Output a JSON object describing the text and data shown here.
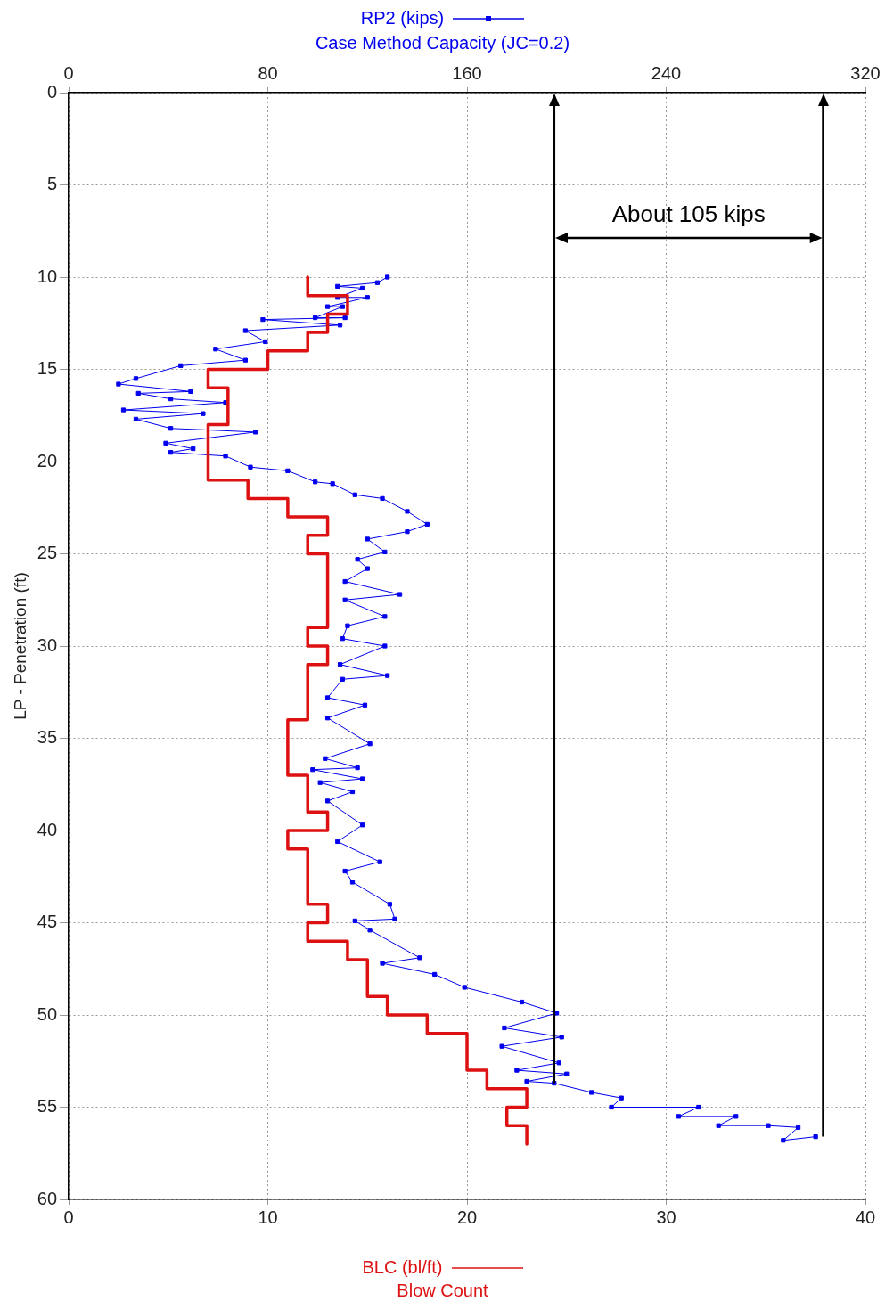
{
  "chart_data": {
    "type": "line",
    "xlabel": "Blow Count",
    "x2label": "Case Method Capacity (JC=0.2)",
    "ylabel": "LP - Penetration (ft)",
    "xlim": [
      0,
      40
    ],
    "xticks": [
      0,
      10,
      20,
      30,
      40
    ],
    "x2lim": [
      0,
      320
    ],
    "x2ticks": [
      0,
      80,
      160,
      240,
      320
    ],
    "ylim": [
      60,
      0
    ],
    "yticks": [
      0,
      5,
      10,
      15,
      20,
      25,
      30,
      35,
      40,
      45,
      50,
      55,
      60
    ],
    "grid": true,
    "legend": "top",
    "series": [
      {
        "name": "RP2 (kips)",
        "type": "line",
        "axis": "x2",
        "color": "#0000ee",
        "marker": "square",
        "x": [
          128,
          124,
          108,
          118,
          108,
          120,
          104,
          110,
          99,
          111,
          78,
          109,
          71,
          79,
          59,
          71,
          45,
          27,
          20,
          49,
          28,
          41,
          63,
          22,
          54,
          27,
          41,
          75,
          39,
          50,
          41,
          63,
          73,
          88,
          99,
          106,
          115,
          126,
          136,
          144,
          136,
          120,
          127,
          116,
          120,
          111,
          133,
          111,
          127,
          112,
          110,
          127,
          109,
          128,
          110,
          104,
          119,
          104,
          121,
          103,
          116,
          98,
          118,
          101,
          114,
          104,
          118,
          108,
          125,
          111,
          114,
          129,
          131,
          115,
          121,
          141,
          126,
          147,
          159,
          182,
          196,
          175,
          198,
          174,
          197,
          180,
          200,
          184,
          195,
          210,
          222,
          218,
          253,
          245,
          268,
          261,
          281,
          293,
          287,
          300
        ],
        "values": [
          10,
          10.3,
          10.5,
          10.6,
          11.1,
          11.1,
          11.6,
          11.6,
          12.2,
          12.2,
          12.3,
          12.6,
          12.9,
          13.5,
          13.9,
          14.5,
          14.8,
          15.5,
          15.8,
          16.2,
          16.3,
          16.6,
          16.8,
          17.2,
          17.4,
          17.7,
          18.2,
          18.4,
          19,
          19.3,
          19.5,
          19.7,
          20.3,
          20.5,
          21.1,
          21.2,
          21.8,
          22,
          22.7,
          23.4,
          23.8,
          24.2,
          24.9,
          25.3,
          25.8,
          26.5,
          27.2,
          27.5,
          28.4,
          28.9,
          29.6,
          30,
          31,
          31.6,
          31.8,
          32.8,
          33.2,
          33.9,
          35.3,
          36.1,
          36.6,
          36.7,
          37.2,
          37.4,
          37.9,
          38.4,
          39.7,
          40.6,
          41.7,
          42.2,
          42.8,
          44,
          44.8,
          44.9,
          45.4,
          46.9,
          47.2,
          47.8,
          48.5,
          49.3,
          49.9,
          50.7,
          51.2,
          51.7,
          52.6,
          53,
          53.2,
          53.6,
          53.7,
          54.2,
          54.5,
          55,
          55,
          55.5,
          55.5,
          56,
          56,
          56.1,
          56.8,
          56.6
        ]
      },
      {
        "name": "BLC (bl/ft)",
        "type": "line",
        "color": "#dd1111",
        "marker": "none",
        "x": [
          12,
          12,
          14,
          14,
          13,
          13,
          12,
          12,
          10,
          10,
          7,
          7,
          8,
          8,
          7,
          7,
          9,
          9,
          11,
          11,
          13,
          13,
          12,
          12,
          13,
          13,
          12,
          12,
          13,
          13,
          12,
          12,
          11,
          11,
          12,
          12,
          13,
          13,
          11,
          11,
          12,
          12,
          13,
          13,
          12,
          12,
          14,
          14,
          15,
          15,
          16,
          16,
          18,
          18,
          20,
          20,
          21,
          21,
          23,
          23,
          22,
          22,
          23,
          23
        ],
        "values": [
          10,
          11,
          11,
          12,
          12,
          13,
          13,
          14,
          14,
          15,
          15,
          16,
          16,
          18,
          18,
          21,
          21,
          22,
          22,
          23,
          23,
          24,
          24,
          25,
          25,
          29,
          29,
          30,
          30,
          31,
          31,
          34,
          34,
          37,
          37,
          39,
          39,
          40,
          40,
          41,
          41,
          44,
          44,
          45,
          45,
          46,
          46,
          47,
          47,
          49,
          49,
          50,
          50,
          51,
          51,
          53,
          53,
          54,
          54,
          55,
          55,
          56,
          56,
          57
        ]
      }
    ],
    "ref_lines": [
      {
        "axis": "x2",
        "value": 195,
        "color": "#000000"
      },
      {
        "axis": "x2",
        "value": 303,
        "color": "#000000"
      }
    ],
    "annotations": [
      "About 105 kips"
    ]
  }
}
